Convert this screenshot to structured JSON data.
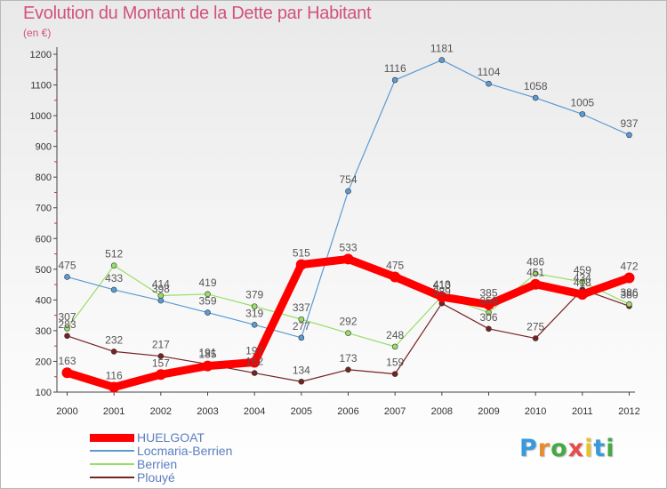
{
  "chart_data": {
    "type": "line",
    "title": "Evolution du Montant de la Dette par Habitant",
    "subtitle": "(en €)",
    "xlabel": "",
    "ylabel": "",
    "x": [
      "2000",
      "2001",
      "2002",
      "2003",
      "2004",
      "2005",
      "2006",
      "2007",
      "2008",
      "2009",
      "2010",
      "2011",
      "2012"
    ],
    "ylim": [
      100,
      1200
    ],
    "yticks": [
      100,
      200,
      300,
      400,
      500,
      600,
      700,
      800,
      900,
      1000,
      1100,
      1200
    ],
    "grid": false,
    "legend_position": "bottom-left",
    "series": [
      {
        "name": "HUELGOAT",
        "color": "#ff0000",
        "values": [
          163,
          116,
          157,
          185,
          197,
          515,
          533,
          475,
          410,
          385,
          451,
          418,
          472
        ]
      },
      {
        "name": "Locmaria-Berrien",
        "color": "#5b9bd5",
        "values": [
          475,
          433,
          398,
          359,
          319,
          277,
          754,
          1116,
          1181,
          1104,
          1058,
          1005,
          937
        ]
      },
      {
        "name": "Berrien",
        "color": "#99dd66",
        "values": [
          307,
          512,
          414,
          419,
          379,
          337,
          292,
          248,
          413,
          359,
          486,
          459,
          386
        ]
      },
      {
        "name": "Plouyé",
        "color": "#772222",
        "values": [
          283,
          232,
          217,
          191,
          162,
          134,
          173,
          159,
          389,
          306,
          275,
          434,
          380
        ]
      }
    ],
    "data_labels": [
      [
        "163",
        "116",
        "157",
        "185",
        "197",
        "515",
        "533",
        "475",
        "410",
        "385",
        "451",
        "418",
        "472"
      ],
      [
        "475",
        "433",
        "398",
        "359",
        "319",
        "277",
        "754",
        "1116",
        "1181",
        "1104",
        "1058",
        "1005",
        "937"
      ],
      [
        "307",
        "512",
        "414",
        "419",
        "379",
        "337",
        "292",
        "248",
        "413",
        "359",
        "486",
        "459",
        "386"
      ],
      [
        "283",
        "232",
        "217",
        "191",
        "162",
        "134",
        "173",
        "159",
        "389",
        "306",
        "275",
        "434",
        "380"
      ]
    ]
  },
  "brand": {
    "letters": [
      "P",
      "r",
      "o",
      "x",
      "i",
      "t",
      "i"
    ],
    "colors": [
      "#3a9ad9",
      "#e88b2e",
      "#46a846",
      "#e84d4d",
      "#e8c22e",
      "#3a9ad9",
      "#46a846"
    ]
  }
}
